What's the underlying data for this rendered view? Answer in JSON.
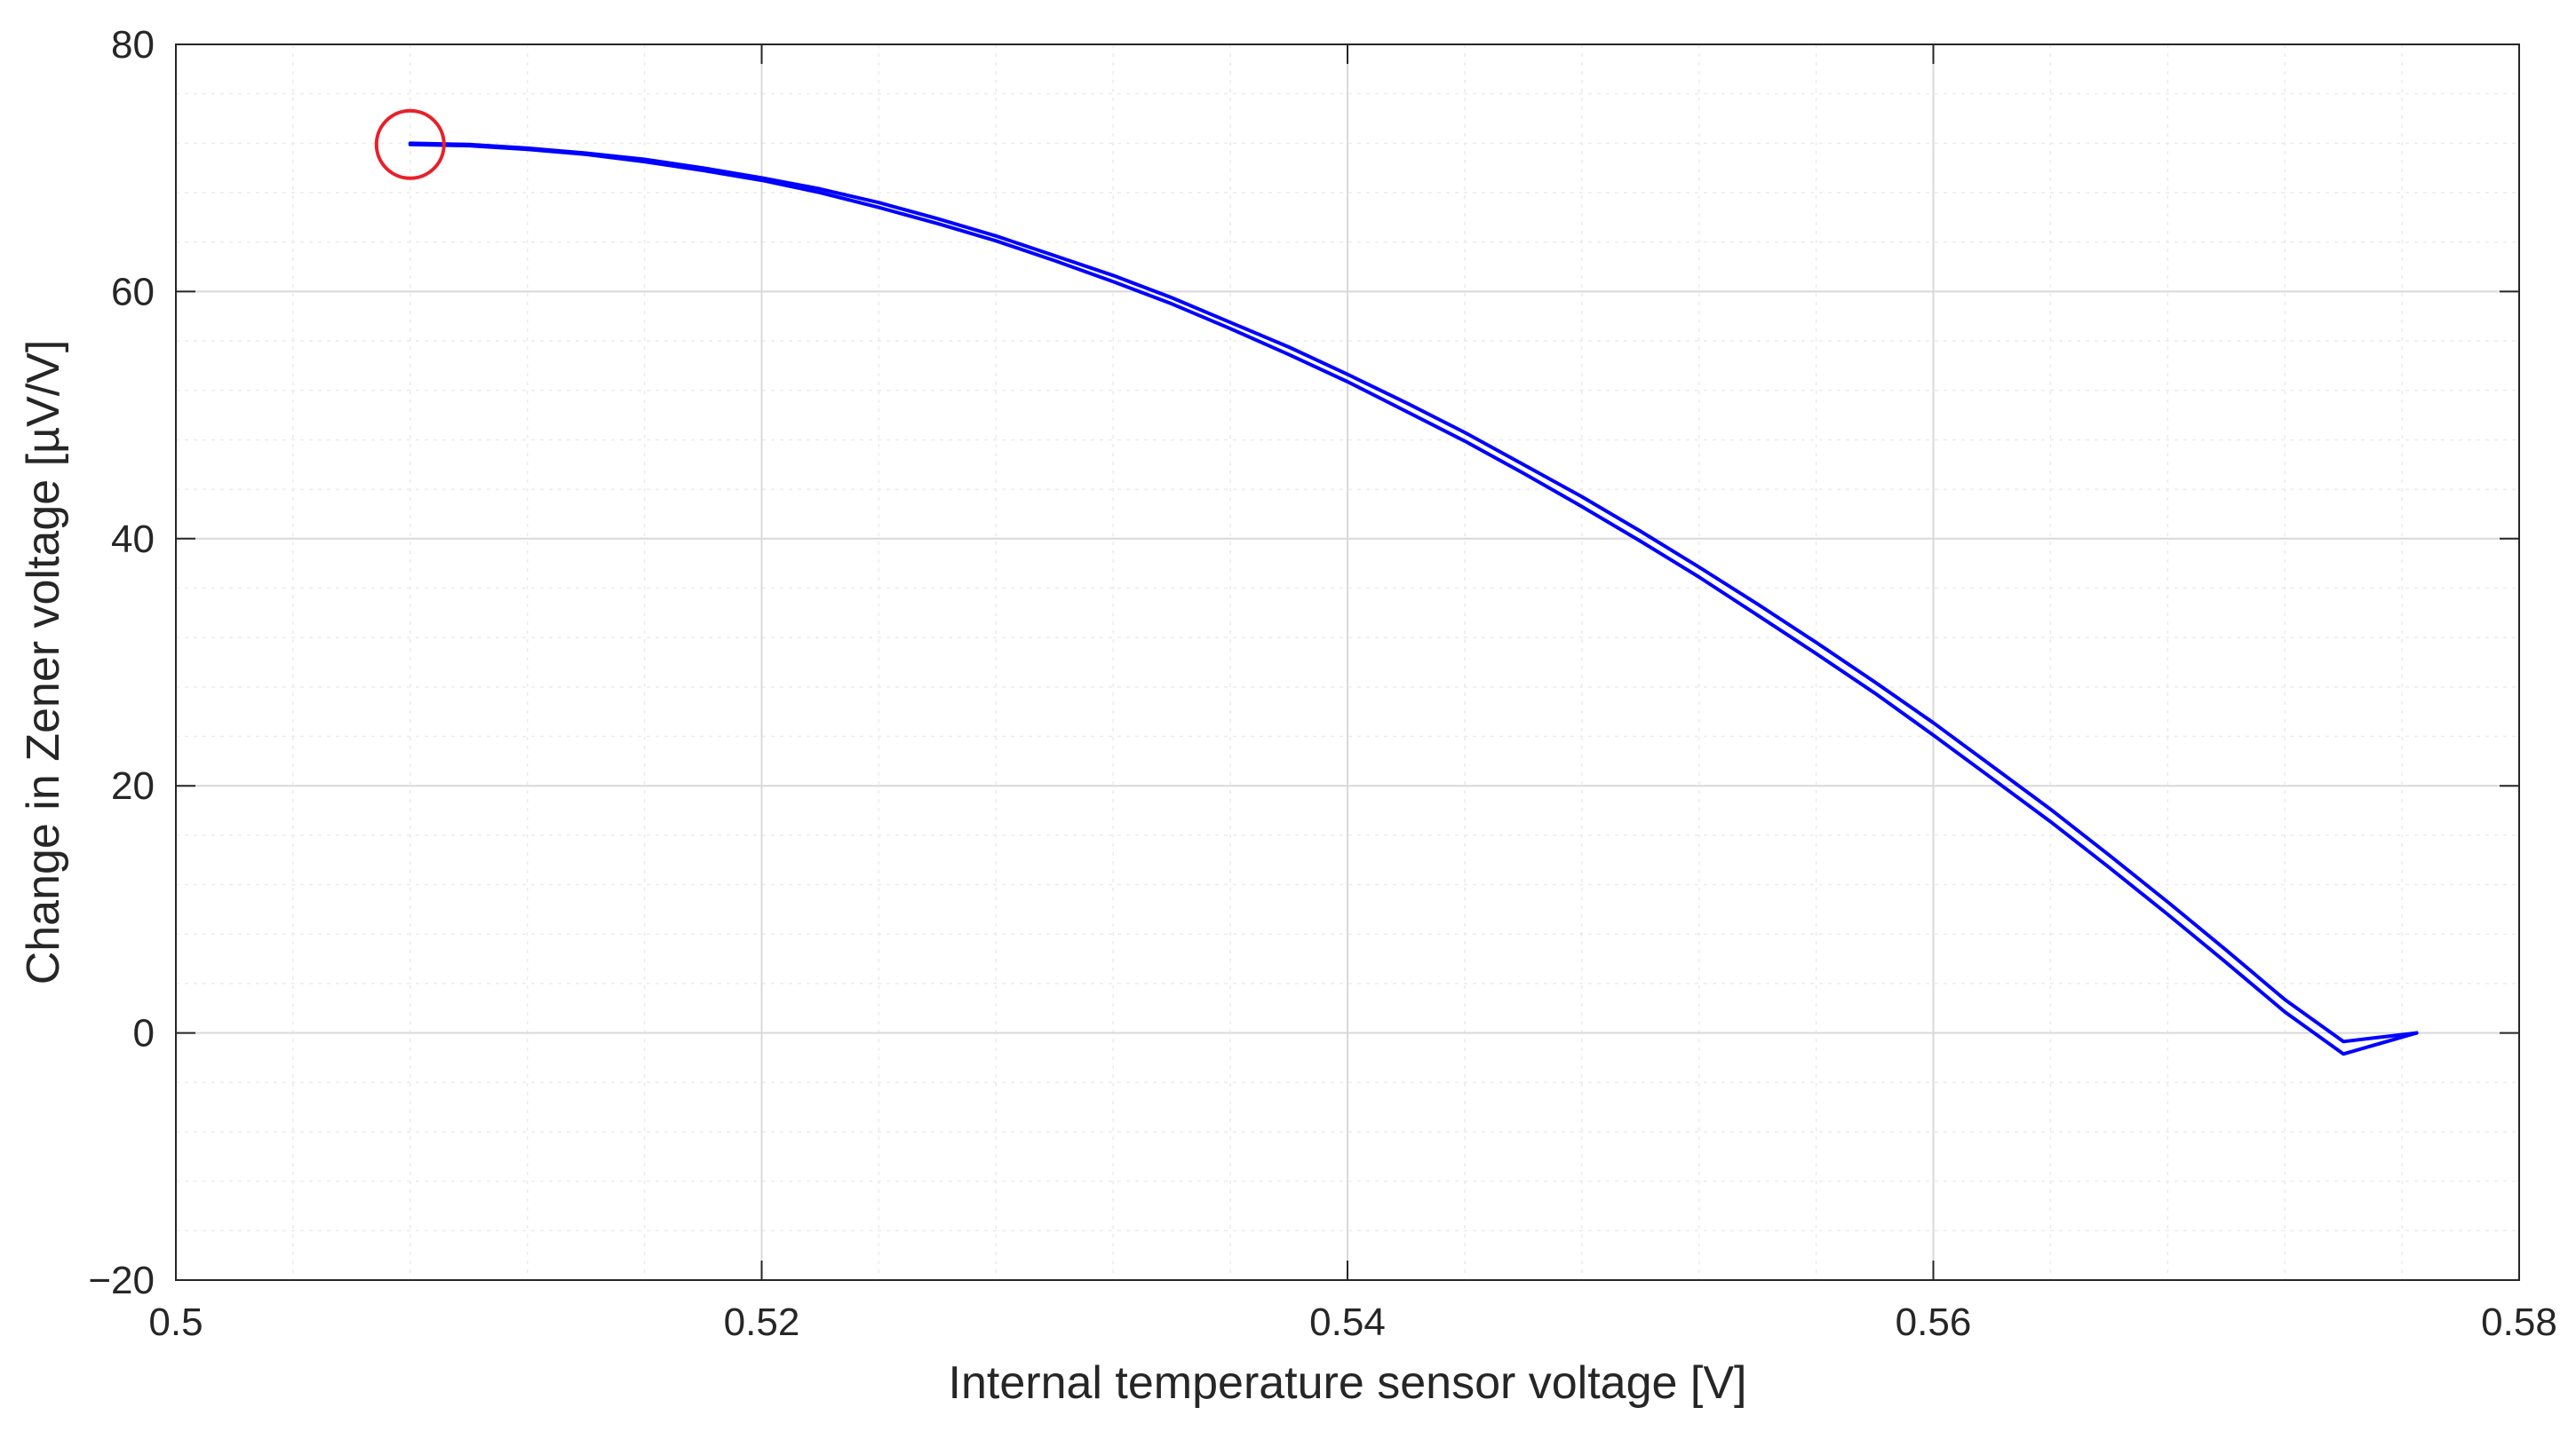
{
  "chart_data": {
    "type": "line",
    "title": "",
    "xlabel": "Internal temperature sensor voltage [V]",
    "ylabel": "Change in Zener voltage [µV/V]",
    "xlim": [
      0.5,
      0.58
    ],
    "ylim": [
      -20,
      80
    ],
    "xticks": [
      0.5,
      0.52,
      0.54,
      0.56,
      0.58
    ],
    "xtick_labels": [
      "0.5",
      "0.52",
      "0.54",
      "0.56",
      "0.58"
    ],
    "yticks": [
      -20,
      0,
      20,
      40,
      60,
      80
    ],
    "ytick_labels": [
      "−20",
      "0",
      "20",
      "40",
      "60",
      "80"
    ],
    "grid": true,
    "minor_grid": true,
    "legend": "none",
    "series": [
      {
        "color": "#0000ff",
        "x": [
          0.508,
          0.51,
          0.512,
          0.514,
          0.516,
          0.518,
          0.52,
          0.522,
          0.524,
          0.526,
          0.528,
          0.53,
          0.532,
          0.534,
          0.536,
          0.538,
          0.54,
          0.542,
          0.544,
          0.546,
          0.548,
          0.55,
          0.552,
          0.554,
          0.556,
          0.558,
          0.56,
          0.562,
          0.564,
          0.566,
          0.568,
          0.57,
          0.572,
          0.574,
          0.5765
        ],
        "y": [
          71.9,
          71.8,
          71.5,
          71.1,
          70.5,
          69.8,
          69.0,
          68.0,
          66.8,
          65.5,
          64.1,
          62.5,
          60.8,
          59.0,
          57.0,
          54.9,
          52.7,
          50.3,
          47.9,
          45.3,
          42.6,
          39.8,
          36.9,
          33.8,
          30.7,
          27.5,
          24.1,
          20.6,
          17.1,
          13.4,
          9.6,
          5.7,
          1.7,
          -1.7,
          0.0
        ]
      },
      {
        "color": "#0000ff",
        "x": [
          0.508,
          0.51,
          0.512,
          0.514,
          0.516,
          0.518,
          0.52,
          0.522,
          0.524,
          0.526,
          0.528,
          0.53,
          0.532,
          0.534,
          0.536,
          0.538,
          0.54,
          0.542,
          0.544,
          0.546,
          0.548,
          0.55,
          0.552,
          0.554,
          0.556,
          0.558,
          0.56,
          0.562,
          0.564,
          0.566,
          0.568,
          0.57,
          0.572,
          0.574,
          0.5765
        ],
        "y": [
          72.0,
          71.9,
          71.6,
          71.2,
          70.7,
          70.0,
          69.2,
          68.3,
          67.2,
          65.9,
          64.5,
          62.9,
          61.3,
          59.5,
          57.5,
          55.5,
          53.3,
          51.0,
          48.6,
          46.0,
          43.4,
          40.6,
          37.7,
          34.7,
          31.6,
          28.4,
          25.1,
          21.6,
          18.1,
          14.4,
          10.6,
          6.7,
          2.7,
          -0.7,
          0.0
        ]
      }
    ],
    "marker": {
      "shape": "circle",
      "color": "#e8202a",
      "x": 0.508,
      "y": 71.9
    }
  }
}
